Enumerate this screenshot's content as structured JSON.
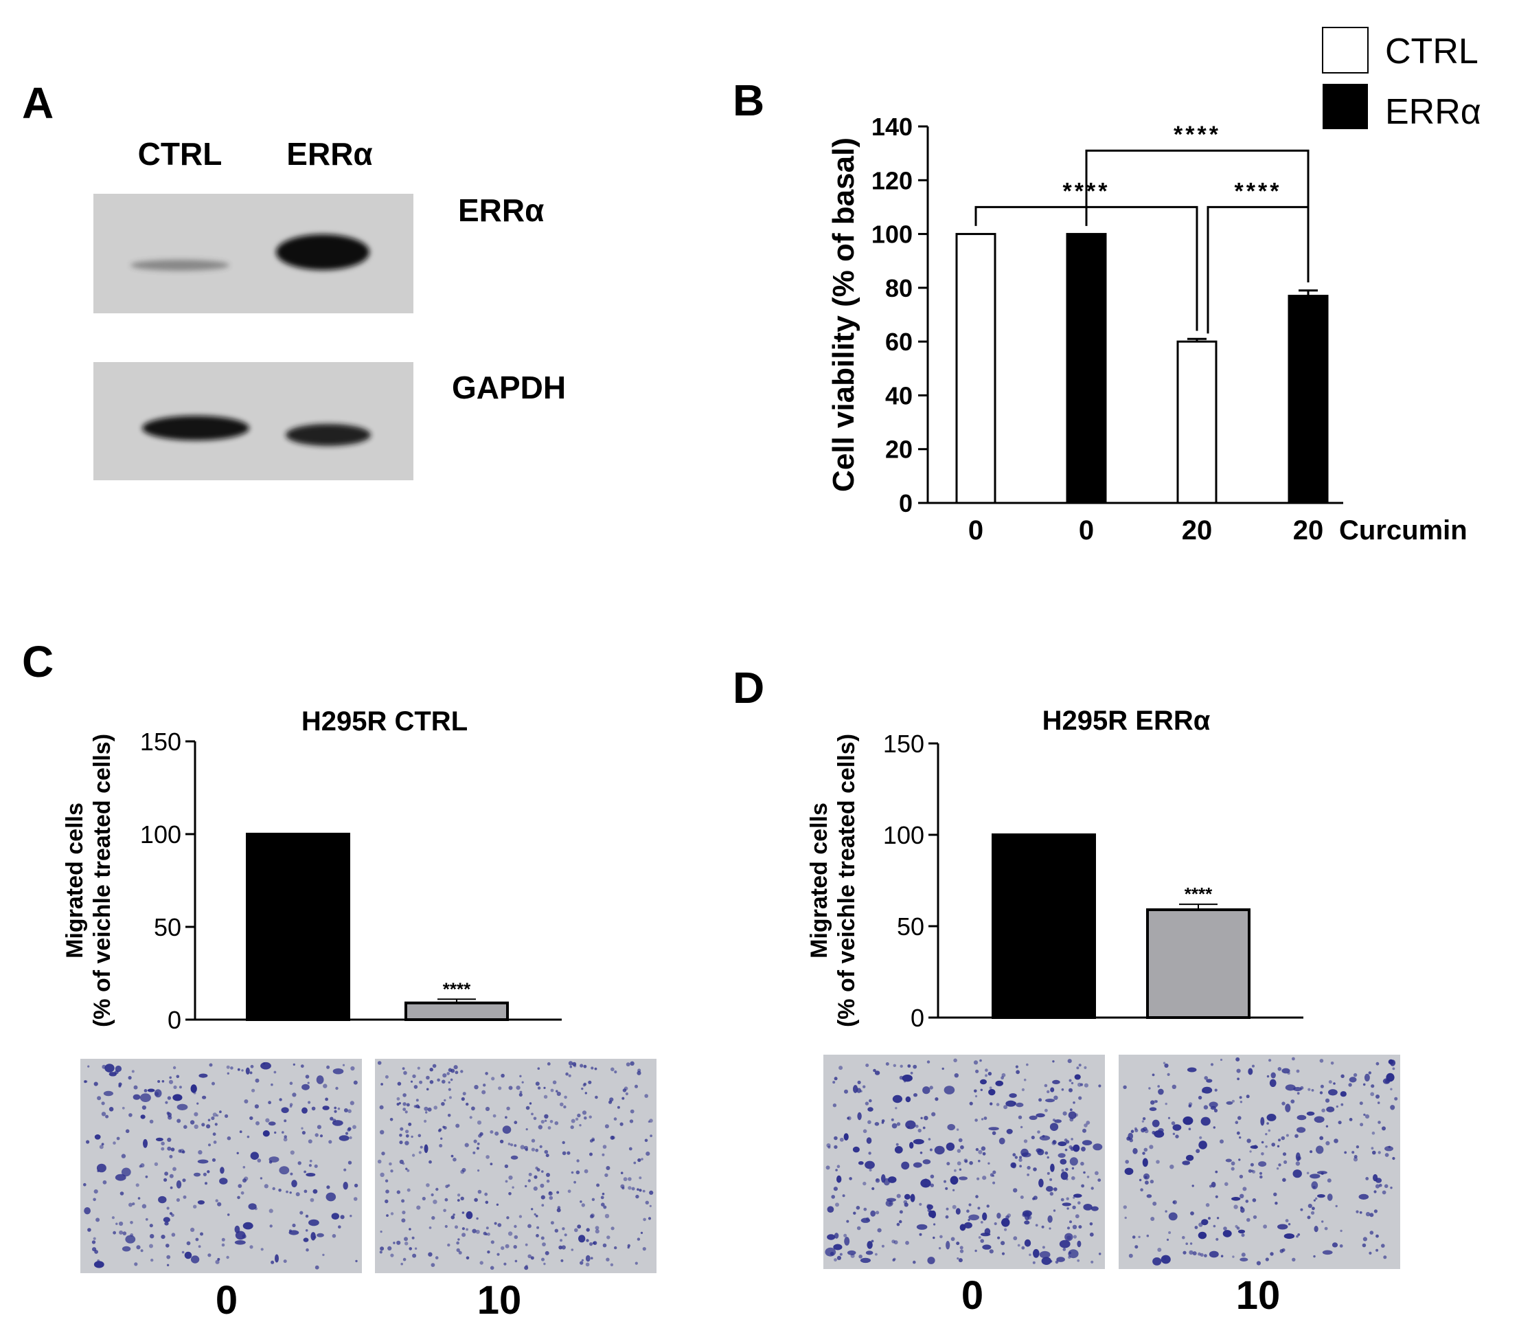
{
  "panels": {
    "a": {
      "letter": "A"
    },
    "b": {
      "letter": "B"
    },
    "c": {
      "letter": "C"
    },
    "d": {
      "letter": "D"
    }
  },
  "western_blot": {
    "lanes": [
      "CTRL",
      "ERRα"
    ],
    "rows": [
      {
        "label": "ERRα",
        "band_intensity": [
          0.15,
          1.0
        ]
      },
      {
        "label": "GAPDH",
        "band_intensity": [
          0.95,
          0.9
        ]
      }
    ]
  },
  "legend": {
    "items": [
      "CTRL",
      "ERRα"
    ],
    "colors": [
      "#ffffff",
      "#000000"
    ]
  },
  "micrographs": {
    "c_labels": [
      "0",
      "10"
    ],
    "d_labels": [
      "0",
      "10"
    ],
    "stain_color": "#2b2e8c",
    "background_color": "#c9cbd0"
  },
  "chart_data": [
    {
      "id": "B",
      "type": "bar",
      "title": "",
      "ylabel": "Cell viability (% of basal)",
      "xlabel": "Curcumin",
      "ylim": [
        0,
        140
      ],
      "yticks": [
        0,
        20,
        40,
        60,
        80,
        100,
        120,
        140
      ],
      "categories": [
        "0",
        "0",
        "20",
        "20"
      ],
      "groups": [
        "CTRL",
        "ERRα",
        "CTRL",
        "ERRα"
      ],
      "values": [
        100,
        100,
        60,
        77
      ],
      "errors": [
        0,
        0,
        1,
        2
      ],
      "fill_colors": [
        "#ffffff",
        "#000000",
        "#ffffff",
        "#000000"
      ],
      "significance": [
        {
          "from": 0,
          "to": 2,
          "label": "****"
        },
        {
          "from": 2,
          "to": 3,
          "label": "****"
        },
        {
          "from": 1,
          "to": 3,
          "label": "****"
        }
      ]
    },
    {
      "id": "C",
      "type": "bar",
      "title": "H295R CTRL",
      "ylabel_lines": [
        "Migrated cells",
        "(% of veichle treated cells)"
      ],
      "ylim": [
        0,
        150
      ],
      "yticks": [
        0,
        50,
        100,
        150
      ],
      "categories": [
        "0",
        "10"
      ],
      "values": [
        100,
        9
      ],
      "errors": [
        0,
        2
      ],
      "fill_colors": [
        "#000000",
        "#a7a7ab"
      ],
      "annotations": [
        "",
        "****"
      ]
    },
    {
      "id": "D",
      "type": "bar",
      "title": "H295R ERRα",
      "ylabel_lines": [
        "Migrated cells",
        "(% of veichle treated cells)"
      ],
      "ylim": [
        0,
        150
      ],
      "yticks": [
        0,
        50,
        100,
        150
      ],
      "categories": [
        "0",
        "10"
      ],
      "values": [
        100,
        59
      ],
      "errors": [
        0,
        3
      ],
      "fill_colors": [
        "#000000",
        "#a7a7ab"
      ],
      "annotations": [
        "",
        "****"
      ]
    }
  ]
}
